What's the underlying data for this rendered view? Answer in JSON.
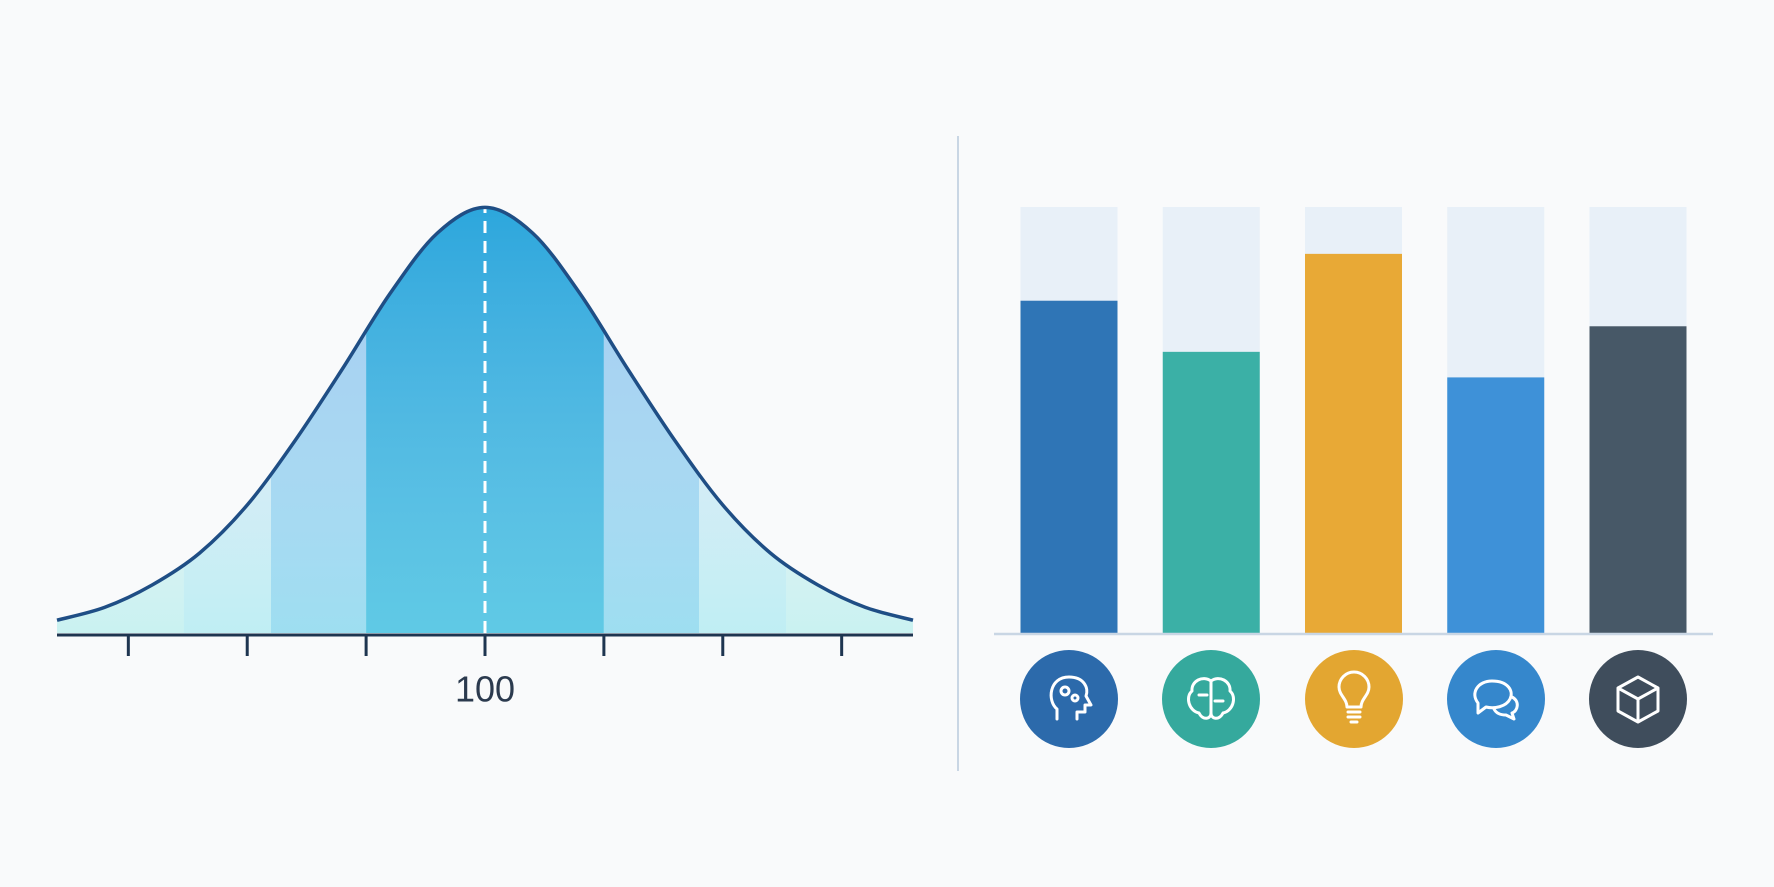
{
  "chart_data": [
    {
      "type": "area",
      "x": [
        46,
        52,
        58,
        64,
        70,
        76,
        82,
        88,
        94,
        100,
        106,
        112,
        118,
        124,
        130,
        136,
        142,
        148,
        154
      ],
      "values": [
        0.0008,
        0.0016,
        0.003,
        0.005,
        0.008,
        0.012,
        0.0165,
        0.0212,
        0.025,
        0.0266,
        0.025,
        0.0212,
        0.0165,
        0.012,
        0.008,
        0.005,
        0.003,
        0.0016,
        0.0008
      ],
      "xlim": [
        46,
        154
      ],
      "ylim": [
        0,
        0.027
      ],
      "xticks": [
        {
          "value": 55,
          "label": null
        },
        {
          "value": 70,
          "label": null
        },
        {
          "value": 85,
          "label": null
        },
        100,
        {
          "value": 115,
          "label": null
        },
        {
          "value": 130,
          "label": null
        },
        {
          "value": 145,
          "label": null
        }
      ],
      "mean": 100,
      "line_color": "#1f4e85",
      "band_edges": [
        62,
        73,
        85,
        115,
        127,
        138
      ],
      "band_colors": [
        "#eceff2",
        "#dae8f6",
        "#9dcbf1",
        "#2ba6dc",
        "#9dcbf1",
        "#dae8f6",
        "#eceff2"
      ]
    },
    {
      "type": "bar",
      "categories": [
        null,
        null,
        null,
        null,
        null
      ],
      "values": [
        78,
        66,
        89,
        60,
        72
      ],
      "colors": [
        "#2f75b6",
        "#3bb0a6",
        "#e8a936",
        "#3e91d8",
        "#475867"
      ],
      "track_color": "#e8f0f8",
      "ylim": [
        0,
        100
      ]
    }
  ]
}
